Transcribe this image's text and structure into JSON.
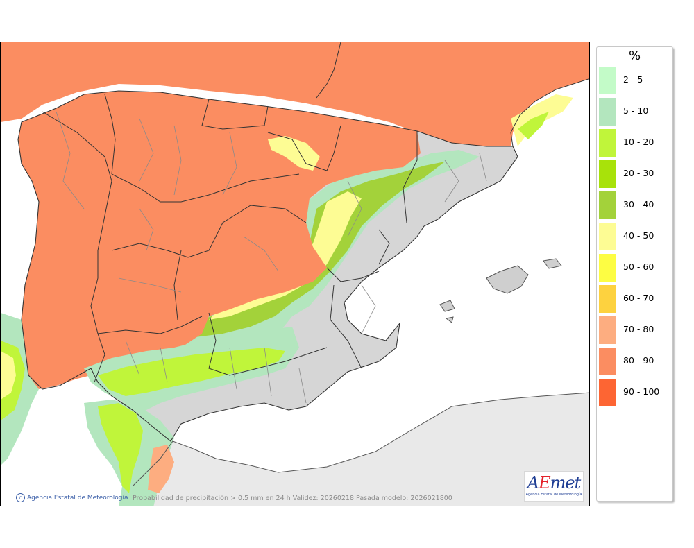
{
  "legend": {
    "unit": "%",
    "items": [
      {
        "label": "2 - 5",
        "color": "#c3fbc8"
      },
      {
        "label": "5 - 10",
        "color": "#b3e6be"
      },
      {
        "label": "10 - 20",
        "color": "#c0f53a"
      },
      {
        "label": "20 - 30",
        "color": "#a8e20a"
      },
      {
        "label": "30 - 40",
        "color": "#a3d23a"
      },
      {
        "label": "40 - 50",
        "color": "#fdfc94"
      },
      {
        "label": "50 - 60",
        "color": "#fdfd43"
      },
      {
        "label": "60 - 70",
        "color": "#fdd23f"
      },
      {
        "label": "70 - 80",
        "color": "#fdad80"
      },
      {
        "label": "80 - 90",
        "color": "#fb8d61"
      },
      {
        "label": "90 - 100",
        "color": "#fd6533"
      }
    ]
  },
  "footer": {
    "agency": "Agencia Estatal de Meteorología",
    "caption": "Probabilidad de precipitación > 0.5 mm en 24 h Validez: 20260218 Pasada modelo: 2026021800"
  },
  "logo": {
    "mark_a": "A",
    "mark_e": "E",
    "mark_met": "met",
    "subtitle": "Agencia Estatal de Meteorología"
  }
}
